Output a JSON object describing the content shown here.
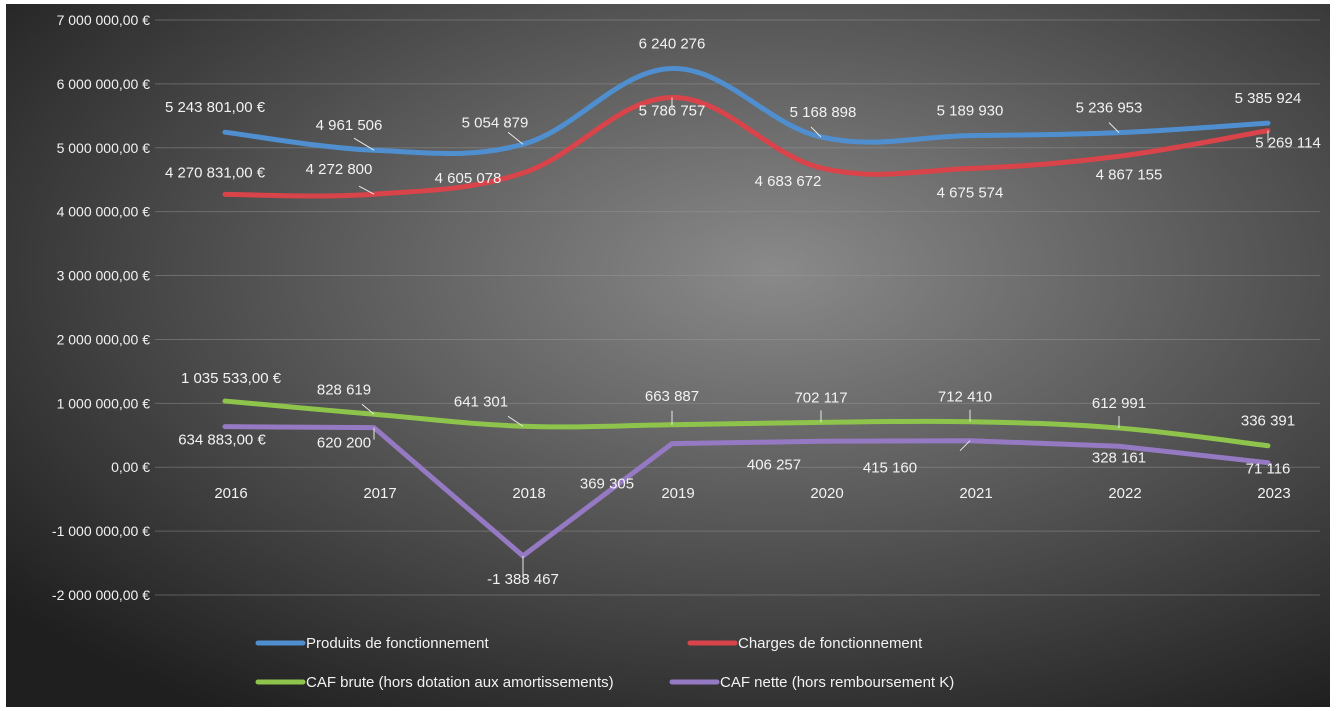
{
  "chart_data": {
    "type": "line",
    "categories": [
      "2016",
      "2017",
      "2018",
      "2019",
      "2020",
      "2021",
      "2022",
      "2023"
    ],
    "y_ticks": [
      {
        "value": 7000000,
        "label": "7 000 000,00 €"
      },
      {
        "value": 6000000,
        "label": "6 000 000,00 €"
      },
      {
        "value": 5000000,
        "label": "5 000 000,00 €"
      },
      {
        "value": 4000000,
        "label": "4 000 000,00 €"
      },
      {
        "value": 3000000,
        "label": "3 000 000,00 €"
      },
      {
        "value": 2000000,
        "label": "2 000 000,00 €"
      },
      {
        "value": 1000000,
        "label": "1 000 000,00 €"
      },
      {
        "value": 0,
        "label": "0,00 €"
      },
      {
        "value": -1000000,
        "label": "-1 000 000,00 €"
      },
      {
        "value": -2000000,
        "label": "-2 000 000,00 €"
      }
    ],
    "ylim": [
      -2000000,
      7000000
    ],
    "grid": true,
    "legend_position": "bottom",
    "series": [
      {
        "name": "Produits de fonctionnement",
        "color": "#4f8fd0",
        "values": [
          5243801,
          4961506,
          5054879,
          6240276,
          5168898,
          5189930,
          5236953,
          5385924
        ],
        "labels": [
          "5 243 801,00 €",
          "4 961 506",
          "5 054 879",
          "6 240 276",
          "5 168 898",
          "5 189 930",
          "5 236 953",
          "5 385 924"
        ]
      },
      {
        "name": "Charges de fonctionnement",
        "color": "#d9434a",
        "values": [
          4270831,
          4272800,
          4605078,
          5786757,
          4683672,
          4675574,
          4867155,
          5269114
        ],
        "labels": [
          "4 270 831,00 €",
          "4 272 800",
          "4 605 078",
          "5 786 757",
          "4 683 672",
          "4 675 574",
          "4 867 155",
          "5 269 114"
        ]
      },
      {
        "name": "CAF brute (hors dotation aux amortissements)",
        "color": "#8ec44b",
        "values": [
          1035533,
          828619,
          641301,
          663887,
          702117,
          712410,
          612991,
          336391
        ],
        "labels": [
          "1 035 533,00 €",
          "828 619",
          "641 301",
          "663 887",
          "702 117",
          "712 410",
          "612 991",
          "336 391"
        ]
      },
      {
        "name": "CAF nette (hors remboursement K)",
        "color": "#9579c2",
        "values": [
          634883,
          620200,
          -1388467,
          369305,
          406257,
          415160,
          328161,
          71116
        ],
        "labels": [
          "634 883,00 €",
          "620 200",
          "-1 388 467",
          "369 305",
          "406 257",
          "415 160",
          "328 161",
          "71 116"
        ]
      }
    ]
  }
}
